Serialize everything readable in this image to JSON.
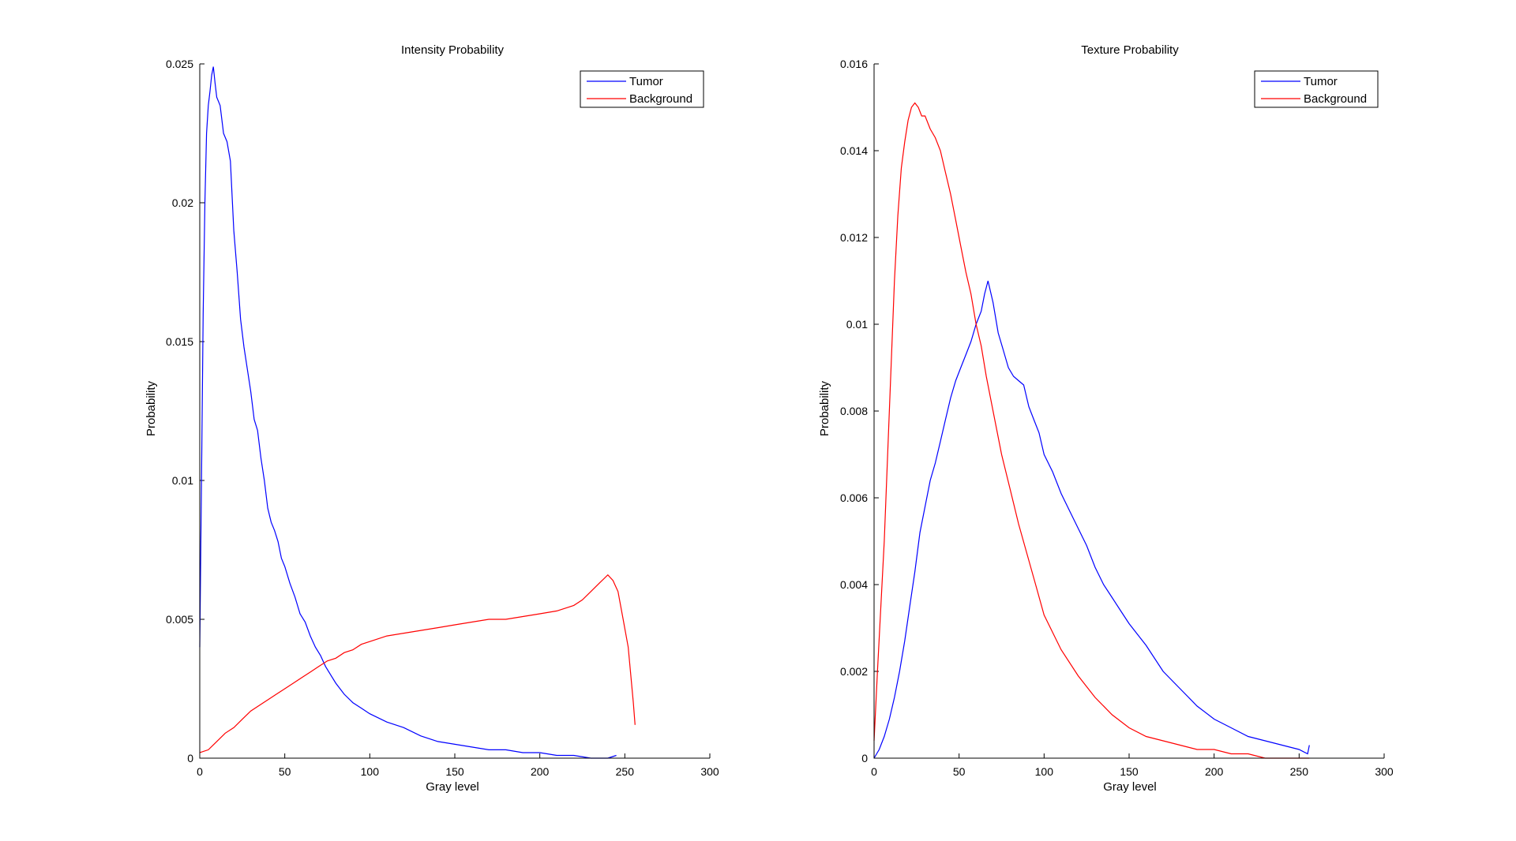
{
  "figure": {
    "charts": [
      {
        "id": "intensity",
        "title": "Intensity Probability",
        "xlabel": "Gray level",
        "ylabel": "Probability"
      },
      {
        "id": "texture",
        "title": "Texture Probability",
        "xlabel": "Gray level",
        "ylabel": "Probability"
      }
    ]
  },
  "chart_data": [
    {
      "type": "line",
      "title": "Intensity Probability",
      "xlabel": "Gray level",
      "ylabel": "Probability",
      "xlim": [
        0,
        300
      ],
      "ylim": [
        0,
        0.025
      ],
      "xticks": [
        0,
        50,
        100,
        150,
        200,
        250,
        300
      ],
      "xtick_labels": [
        "0",
        "50",
        "100",
        "150",
        "200",
        "250",
        "300"
      ],
      "yticks": [
        0,
        0.005,
        0.01,
        0.015,
        0.02,
        0.025
      ],
      "ytick_labels": [
        "0",
        "0.005",
        "0.01",
        "0.015",
        "0.02",
        "0.025"
      ],
      "grid": false,
      "legend_position": "top-right",
      "series": [
        {
          "name": "Tumor",
          "color": "#0000ff",
          "x": [
            0,
            1,
            2,
            3,
            4,
            5,
            6,
            7,
            8,
            9,
            10,
            12,
            14,
            16,
            18,
            20,
            22,
            24,
            26,
            28,
            30,
            32,
            34,
            36,
            38,
            40,
            42,
            44,
            46,
            48,
            50,
            53,
            56,
            59,
            62,
            65,
            68,
            71,
            74,
            77,
            80,
            85,
            90,
            95,
            100,
            110,
            120,
            130,
            140,
            150,
            160,
            170,
            180,
            190,
            200,
            210,
            220,
            230,
            240,
            245
          ],
          "values": [
            0.004,
            0.01,
            0.016,
            0.02,
            0.0225,
            0.0235,
            0.024,
            0.0246,
            0.0249,
            0.0243,
            0.0238,
            0.0235,
            0.0225,
            0.0222,
            0.0215,
            0.019,
            0.0175,
            0.0158,
            0.0148,
            0.014,
            0.0132,
            0.0122,
            0.0118,
            0.0108,
            0.01,
            0.009,
            0.0085,
            0.0082,
            0.0078,
            0.0072,
            0.0069,
            0.0063,
            0.0058,
            0.0052,
            0.0049,
            0.0044,
            0.004,
            0.0037,
            0.0033,
            0.003,
            0.0027,
            0.0023,
            0.002,
            0.0018,
            0.0016,
            0.0013,
            0.0011,
            0.0008,
            0.0006,
            0.0005,
            0.0004,
            0.0003,
            0.0003,
            0.0002,
            0.0002,
            0.0001,
            0.0001,
            0.0,
            0.0,
            0.0001
          ]
        },
        {
          "name": "Background",
          "color": "#ff0000",
          "x": [
            0,
            5,
            10,
            15,
            20,
            25,
            30,
            35,
            40,
            45,
            50,
            55,
            60,
            65,
            70,
            75,
            80,
            85,
            90,
            95,
            100,
            110,
            120,
            130,
            140,
            150,
            160,
            170,
            180,
            190,
            200,
            210,
            220,
            225,
            230,
            235,
            240,
            243,
            246,
            249,
            252,
            255,
            256
          ],
          "values": [
            0.0002,
            0.0003,
            0.0006,
            0.0009,
            0.0011,
            0.0014,
            0.0017,
            0.0019,
            0.0021,
            0.0023,
            0.0025,
            0.0027,
            0.0029,
            0.0031,
            0.0033,
            0.0035,
            0.0036,
            0.0038,
            0.0039,
            0.0041,
            0.0042,
            0.0044,
            0.0045,
            0.0046,
            0.0047,
            0.0048,
            0.0049,
            0.005,
            0.005,
            0.0051,
            0.0052,
            0.0053,
            0.0055,
            0.0057,
            0.006,
            0.0063,
            0.0066,
            0.0064,
            0.006,
            0.005,
            0.004,
            0.002,
            0.0012
          ]
        }
      ]
    },
    {
      "type": "line",
      "title": "Texture Probability",
      "xlabel": "Gray level",
      "ylabel": "Probability",
      "xlim": [
        0,
        300
      ],
      "ylim": [
        0,
        0.016
      ],
      "xticks": [
        0,
        50,
        100,
        150,
        200,
        250,
        300
      ],
      "xtick_labels": [
        "0",
        "50",
        "100",
        "150",
        "200",
        "250",
        "300"
      ],
      "yticks": [
        0,
        0.002,
        0.004,
        0.006,
        0.008,
        0.01,
        0.012,
        0.014,
        0.016
      ],
      "ytick_labels": [
        "0",
        "0.002",
        "0.004",
        "0.006",
        "0.008",
        "0.01",
        "0.012",
        "0.014",
        "0.016"
      ],
      "grid": false,
      "legend_position": "top-right",
      "series": [
        {
          "name": "Tumor",
          "color": "#0000ff",
          "x": [
            0,
            3,
            6,
            9,
            12,
            15,
            18,
            21,
            24,
            27,
            30,
            33,
            36,
            39,
            42,
            45,
            48,
            51,
            54,
            57,
            60,
            63,
            65,
            67,
            70,
            73,
            76,
            79,
            82,
            85,
            88,
            91,
            94,
            97,
            100,
            105,
            110,
            115,
            120,
            125,
            130,
            135,
            140,
            145,
            150,
            160,
            170,
            180,
            190,
            200,
            210,
            220,
            230,
            240,
            250,
            255,
            256
          ],
          "values": [
            0.0,
            0.0002,
            0.0005,
            0.0009,
            0.0014,
            0.002,
            0.0027,
            0.0035,
            0.0043,
            0.0052,
            0.0058,
            0.0064,
            0.0068,
            0.0073,
            0.0078,
            0.0083,
            0.0087,
            0.009,
            0.0093,
            0.0096,
            0.01,
            0.0103,
            0.0107,
            0.011,
            0.0105,
            0.0098,
            0.0094,
            0.009,
            0.0088,
            0.0087,
            0.0086,
            0.0081,
            0.0078,
            0.0075,
            0.007,
            0.0066,
            0.0061,
            0.0057,
            0.0053,
            0.0049,
            0.0044,
            0.004,
            0.0037,
            0.0034,
            0.0031,
            0.0026,
            0.002,
            0.0016,
            0.0012,
            0.0009,
            0.0007,
            0.0005,
            0.0004,
            0.0003,
            0.0002,
            0.0001,
            0.0003
          ]
        },
        {
          "name": "Background",
          "color": "#ff0000",
          "x": [
            0,
            2,
            4,
            6,
            8,
            10,
            12,
            14,
            16,
            18,
            20,
            22,
            24,
            26,
            28,
            30,
            33,
            36,
            39,
            42,
            45,
            48,
            51,
            54,
            57,
            60,
            63,
            66,
            70,
            75,
            80,
            85,
            90,
            95,
            100,
            110,
            120,
            130,
            140,
            150,
            160,
            170,
            180,
            190,
            200,
            210,
            220,
            230,
            240,
            250,
            256
          ],
          "values": [
            0.0004,
            0.002,
            0.0035,
            0.005,
            0.007,
            0.009,
            0.011,
            0.0125,
            0.0136,
            0.0142,
            0.0147,
            0.015,
            0.0151,
            0.015,
            0.0148,
            0.0148,
            0.0145,
            0.0143,
            0.014,
            0.0135,
            0.013,
            0.0124,
            0.0118,
            0.0112,
            0.0107,
            0.01,
            0.0095,
            0.0088,
            0.008,
            0.007,
            0.0062,
            0.0054,
            0.0047,
            0.004,
            0.0033,
            0.0025,
            0.0019,
            0.0014,
            0.001,
            0.0007,
            0.0005,
            0.0004,
            0.0003,
            0.0002,
            0.0002,
            0.0001,
            0.0001,
            0.0,
            0.0,
            0.0,
            0.0
          ]
        }
      ]
    }
  ]
}
